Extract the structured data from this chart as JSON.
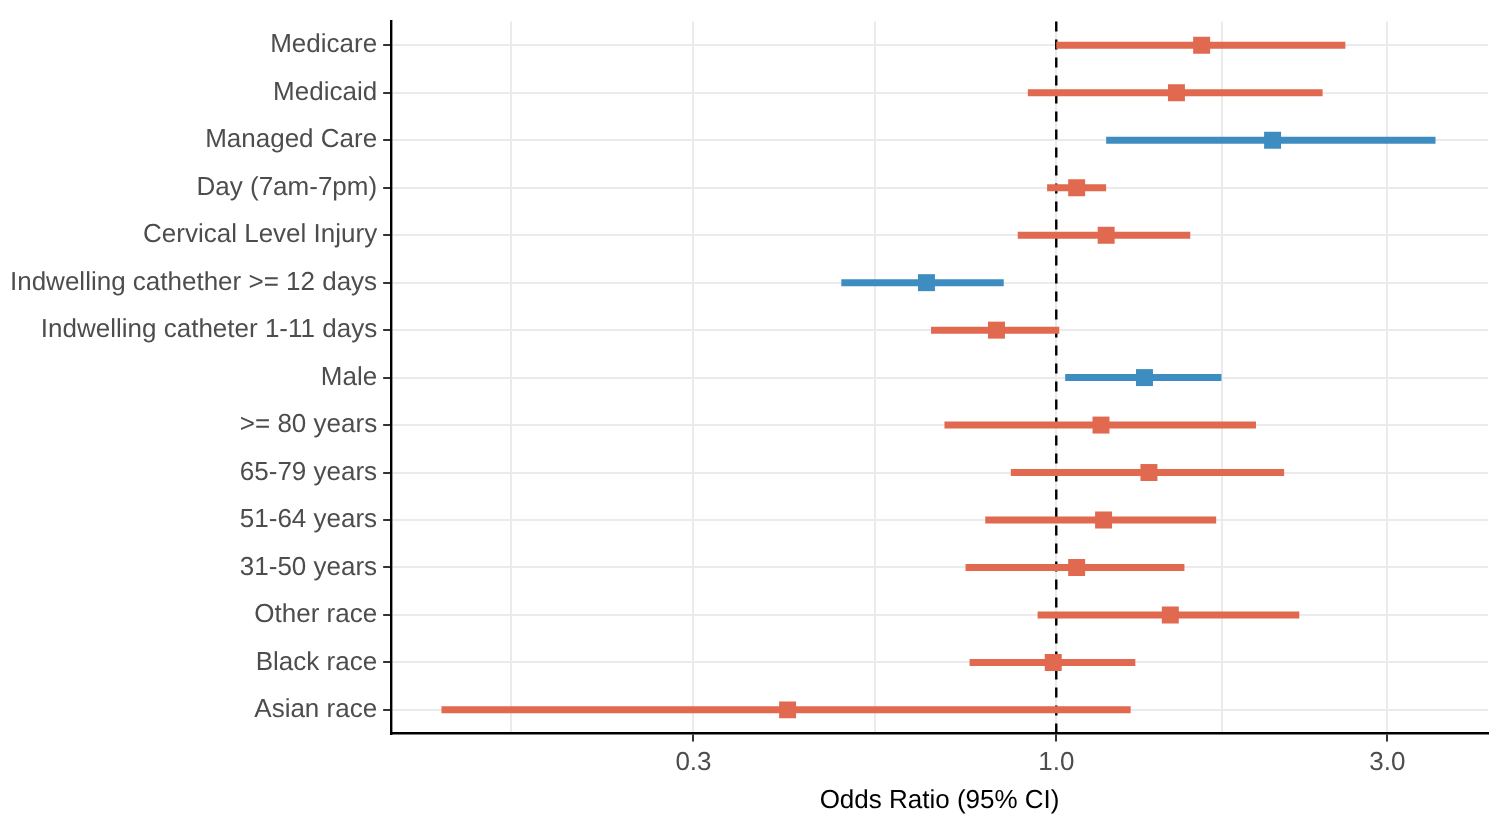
{
  "chart_data": {
    "type": "scatter",
    "orientation": "horizontal",
    "xlabel": "Odds Ratio (95% CI)",
    "categories": [
      "Medicare",
      "Medicaid",
      "Managed Care",
      "Day (7am-7pm)",
      "Cervical Level Injury",
      "Indwelling cathether >= 12 days",
      "Indwelling catheter 1-11 days",
      "Male",
      ">= 80 years",
      "65-79 years",
      "51-64 years",
      "31-50 years",
      "Other race",
      "Black race",
      "Asian race"
    ],
    "values": [
      1.62,
      1.49,
      2.05,
      1.07,
      1.18,
      0.65,
      0.82,
      1.34,
      1.16,
      1.36,
      1.17,
      1.07,
      1.46,
      0.99,
      0.41
    ],
    "errors": [
      [
        1.0,
        2.61
      ],
      [
        0.91,
        2.42
      ],
      [
        1.18,
        3.52
      ],
      [
        0.97,
        1.18
      ],
      [
        0.88,
        1.56
      ],
      [
        0.49,
        0.84
      ],
      [
        0.66,
        1.01
      ],
      [
        1.03,
        1.73
      ],
      [
        0.69,
        1.94
      ],
      [
        0.86,
        2.13
      ],
      [
        0.79,
        1.7
      ],
      [
        0.74,
        1.53
      ],
      [
        0.94,
        2.24
      ],
      [
        0.75,
        1.3
      ],
      [
        0.13,
        1.28
      ]
    ],
    "colors": [
      "#e0694f",
      "#e0694f",
      "#3d8dc0",
      "#e0694f",
      "#e0694f",
      "#3d8dc0",
      "#e0694f",
      "#3d8dc0",
      "#e0694f",
      "#e0694f",
      "#e0694f",
      "#e0694f",
      "#e0694f",
      "#e0694f",
      "#e0694f"
    ],
    "log": "x",
    "xlim": [
      0.11,
      4.19
    ],
    "xticks": [
      {
        "value": 0.164,
        "label": null
      },
      0.3,
      {
        "value": 0.548,
        "label": null
      },
      {
        "value": 1,
        "label": "1.0"
      },
      {
        "value": 1.732,
        "label": null
      },
      {
        "value": 3,
        "label": "3.0"
      }
    ],
    "ref_lines": [
      {
        "axis": "x",
        "value": 1,
        "line_style": "dashed",
        "color": "#000000"
      }
    ],
    "grid": true,
    "marker": "square",
    "legend": false
  }
}
